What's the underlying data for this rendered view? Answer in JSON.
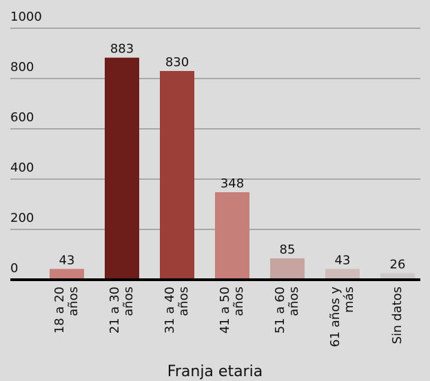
{
  "chart_data": {
    "type": "bar",
    "x_label": "Franja etaria",
    "categories": [
      "18 a 20\naños",
      "21 a 30\naños",
      "31 a 40\naños",
      "41 a 50\naños",
      "51 a 60\naños",
      "61 años y\nmás",
      "Sin datos"
    ],
    "values": [
      43,
      883,
      830,
      348,
      85,
      43,
      26
    ],
    "colors": [
      "#c97f7a",
      "#6e1e1a",
      "#9b3f38",
      "#c77f7a",
      "#c8a4a1",
      "#d0bcbb",
      "#cdc9c9"
    ],
    "ylim": [
      0,
      1000
    ],
    "yticks": [
      0,
      200,
      400,
      600,
      800,
      1000
    ],
    "grid": true
  }
}
